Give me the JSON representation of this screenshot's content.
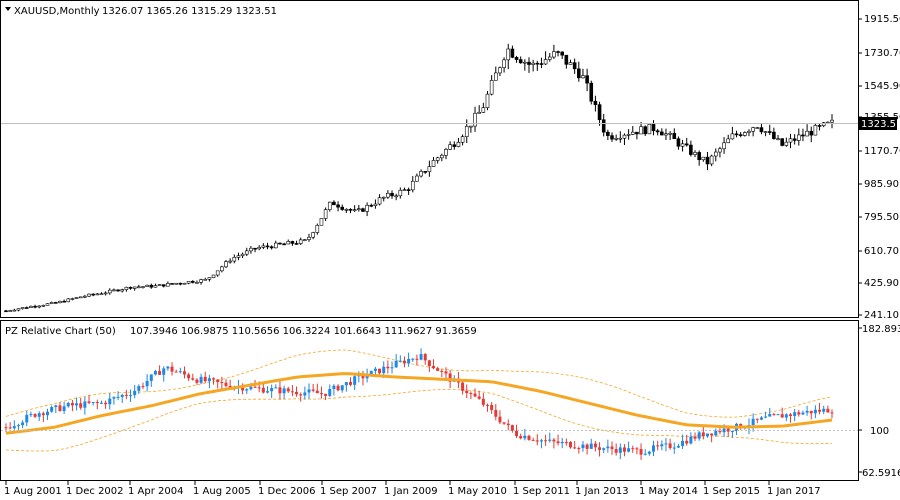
{
  "window": {
    "symbol_header": "XAUUSD,Monthly",
    "ohlc": "1326.07 1365.26 1315.29 1323.51",
    "current_price": "1323.51"
  },
  "indicator": {
    "header": "PZ Relative Chart (50)",
    "values": "107.3946 106.9875 110.5656 106.3224 101.6643 111.9627 91.3659"
  },
  "colors": {
    "bull": "#1e88e5",
    "bear": "#e53935",
    "ma": "#f5a623",
    "band": "#f5a623",
    "price_candle": "#000000",
    "background": "#ffffff",
    "grid_line": "#c0c0c0"
  },
  "chart_data": [
    {
      "type": "candlestick",
      "title": "XAUUSD,Monthly",
      "ylim": [
        241.1,
        2000
      ],
      "y_ticks": [
        "1915.50",
        "1730.70",
        "1545.90",
        "1355.50",
        "1170.70",
        "985.90",
        "795.50",
        "610.70",
        "425.90",
        "241.10"
      ],
      "current_price_label": "1323.51",
      "series_close_approx": [
        [
          2001.5,
          265
        ],
        [
          2002.0,
          290
        ],
        [
          2002.5,
          310
        ],
        [
          2003.0,
          345
        ],
        [
          2003.5,
          370
        ],
        [
          2004.0,
          400
        ],
        [
          2004.5,
          405
        ],
        [
          2005.0,
          425
        ],
        [
          2005.5,
          440
        ],
        [
          2006.0,
          560
        ],
        [
          2006.5,
          620
        ],
        [
          2007.0,
          640
        ],
        [
          2007.5,
          660
        ],
        [
          2008.0,
          880
        ],
        [
          2008.5,
          820
        ],
        [
          2009.0,
          900
        ],
        [
          2009.5,
          950
        ],
        [
          2010.0,
          1100
        ],
        [
          2010.5,
          1230
        ],
        [
          2011.0,
          1400
        ],
        [
          2011.5,
          1750
        ],
        [
          2012.0,
          1650
        ],
        [
          2012.5,
          1720
        ],
        [
          2013.0,
          1600
        ],
        [
          2013.5,
          1250
        ],
        [
          2014.0,
          1280
        ],
        [
          2014.5,
          1300
        ],
        [
          2015.0,
          1200
        ],
        [
          2015.5,
          1100
        ],
        [
          2016.0,
          1250
        ],
        [
          2016.5,
          1320
        ],
        [
          2017.0,
          1200
        ],
        [
          2017.5,
          1270
        ],
        [
          2018.0,
          1325
        ]
      ]
    },
    {
      "type": "candlestick",
      "title": "PZ Relative Chart (50)",
      "ylim": [
        62.5916,
        182.8936
      ],
      "y_ticks": [
        "182.8936",
        "100",
        "62.5916"
      ],
      "x_tick_labels": [
        "1 Aug 2001",
        "1 Dec 2002",
        "1 Apr 2004",
        "1 Aug 2005",
        "1 Dec 2006",
        "1 Sep 2007",
        "1 Jan 2009",
        "1 May 2010",
        "1 Sep 2011",
        "1 Jan 2013",
        "1 May 2014",
        "1 Sep 2015",
        "1 Jan 2017"
      ],
      "series": [
        {
          "name": "",
          "type": "ma",
          "values_approx": [
            95,
            100,
            110,
            118,
            128,
            135,
            142,
            145,
            142,
            140,
            138,
            130,
            120,
            110,
            102,
            100,
            101,
            106
          ]
        }
      ]
    }
  ]
}
